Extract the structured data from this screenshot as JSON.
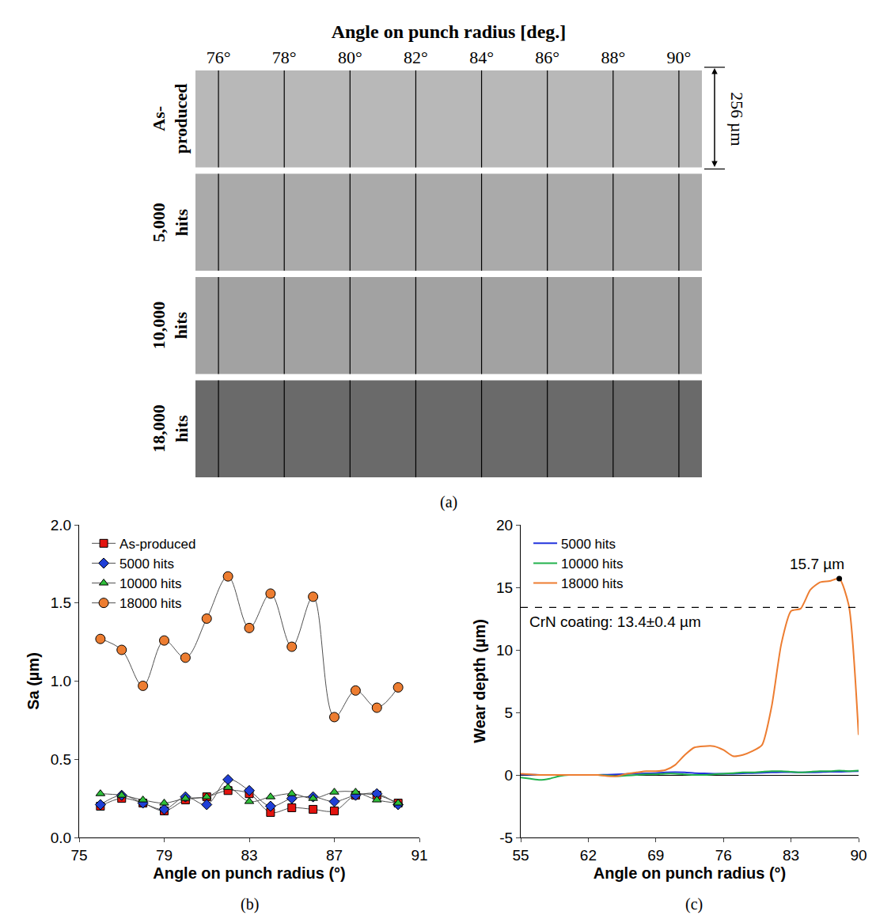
{
  "figure_a": {
    "title": "Angle on punch radius [deg.]",
    "xlim": [
      75.3,
      90.7
    ],
    "xticks": [
      {
        "value": 76,
        "label": "76°"
      },
      {
        "value": 78,
        "label": "78°"
      },
      {
        "value": 80,
        "label": "80°"
      },
      {
        "value": 82,
        "label": "82°"
      },
      {
        "value": 84,
        "label": "84°"
      },
      {
        "value": 86,
        "label": "86°"
      },
      {
        "value": 88,
        "label": "88°"
      },
      {
        "value": 90,
        "label": "90°"
      }
    ],
    "rows": [
      "As-produced",
      "5,000 hits",
      "10,000 hits",
      "18,000 hits"
    ],
    "scale_bar": "256 µm",
    "panel_label": "(a)"
  },
  "chart_data": [
    {
      "type": "line",
      "panel_label": "(b)",
      "x_label": "Angle on punch radius (°)",
      "y_label": "Sa (µm)",
      "x": [
        76,
        77,
        78,
        79,
        80,
        81,
        82,
        83,
        84,
        85,
        86,
        87,
        88,
        89,
        90
      ],
      "series": [
        {
          "name": "As-produced",
          "color": "#e3140f",
          "marker": "square",
          "values": [
            0.2,
            0.25,
            0.22,
            0.17,
            0.24,
            0.26,
            0.3,
            0.28,
            0.16,
            0.19,
            0.18,
            0.17,
            0.27,
            0.27,
            0.22
          ]
        },
        {
          "name": "5000 hits",
          "color": "#1f3fd6",
          "marker": "diamond",
          "values": [
            0.21,
            0.27,
            0.22,
            0.18,
            0.26,
            0.21,
            0.37,
            0.3,
            0.2,
            0.25,
            0.26,
            0.23,
            0.27,
            0.28,
            0.21
          ]
        },
        {
          "name": "10000 hits",
          "color": "#2fbf3a",
          "marker": "triangle",
          "values": [
            0.28,
            0.27,
            0.24,
            0.22,
            0.25,
            0.26,
            0.32,
            0.23,
            0.26,
            0.28,
            0.25,
            0.29,
            0.29,
            0.24,
            0.22
          ]
        },
        {
          "name": "18000 hits",
          "color": "#ed7d31",
          "marker": "circle",
          "values": [
            1.27,
            1.2,
            0.97,
            1.26,
            1.15,
            1.4,
            1.67,
            1.34,
            1.56,
            1.22,
            1.54,
            0.77,
            0.94,
            0.83,
            0.96
          ]
        }
      ],
      "xlim": [
        75,
        91
      ],
      "xticks": [
        75,
        79,
        83,
        87,
        91
      ],
      "ylim": [
        0,
        2
      ],
      "yticks": [
        {
          "value": 0,
          "label": "0.0"
        },
        {
          "value": 0.5,
          "label": "0.5"
        },
        {
          "value": 1,
          "label": "1.0"
        },
        {
          "value": 1.5,
          "label": "1.5"
        },
        {
          "value": 2,
          "label": "2.0"
        }
      ],
      "grid": false,
      "legend": "top-left"
    },
    {
      "type": "line",
      "panel_label": "(c)",
      "x_label": "Angle on punch radius (°)",
      "y_label": "Wear depth (µm)",
      "x": [
        55,
        56,
        57,
        58,
        59,
        60,
        61,
        62,
        63,
        64,
        65,
        66,
        67,
        68,
        69,
        70,
        71,
        72,
        73,
        74,
        75,
        76,
        77,
        78,
        79,
        80,
        81,
        82,
        83,
        84,
        85,
        86,
        87,
        88,
        89,
        90
      ],
      "series": [
        {
          "name": "5000 hits",
          "color": "#2233dd",
          "values": [
            0.05,
            0.02,
            0,
            0,
            0,
            0,
            0,
            0,
            0,
            0.02,
            0.05,
            0.08,
            0.1,
            0.12,
            0.15,
            0.2,
            0.22,
            0.2,
            0.15,
            0.12,
            0.1,
            0.1,
            0.1,
            0.12,
            0.15,
            0.18,
            0.2,
            0.22,
            0.22,
            0.2,
            0.2,
            0.22,
            0.25,
            0.25,
            0.28,
            0.3
          ]
        },
        {
          "name": "10000 hits",
          "color": "#22b14c",
          "values": [
            -0.2,
            -0.3,
            -0.4,
            -0.3,
            -0.1,
            0,
            0,
            0,
            0,
            -0.05,
            -0.1,
            -0.05,
            0,
            0.05,
            0.05,
            0.1,
            0.1,
            0.05,
            0,
            0,
            0.05,
            0.1,
            0.15,
            0.2,
            0.2,
            0.25,
            0.3,
            0.3,
            0.25,
            0.2,
            0.25,
            0.3,
            0.3,
            0.35,
            0.3,
            0.35
          ]
        },
        {
          "name": "18000 hits",
          "color": "#ed7d31",
          "values": [
            0.1,
            0.05,
            0,
            0,
            0,
            0,
            0,
            0,
            0,
            -0.1,
            -0.1,
            0.1,
            0.2,
            0.3,
            0.3,
            0.4,
            0.8,
            1.6,
            2.2,
            2.3,
            2.3,
            2.0,
            1.5,
            1.6,
            1.9,
            2.4,
            5.5,
            10.5,
            13.1,
            13.3,
            14.8,
            15.4,
            15.5,
            15.7,
            13.5,
            3.2
          ]
        }
      ],
      "xlim": [
        55,
        90
      ],
      "xticks": [
        55,
        62,
        69,
        76,
        83,
        90
      ],
      "ylim": [
        -5,
        20
      ],
      "yticks": [
        -5,
        0,
        5,
        10,
        15,
        20
      ],
      "reference_line": {
        "y": 13.4,
        "label": "CrN coating: 13.4±0.4 µm"
      },
      "peak": {
        "x": 88,
        "y": 15.7,
        "label": "15.7 µm"
      },
      "grid": false,
      "legend": "top-left"
    }
  ]
}
